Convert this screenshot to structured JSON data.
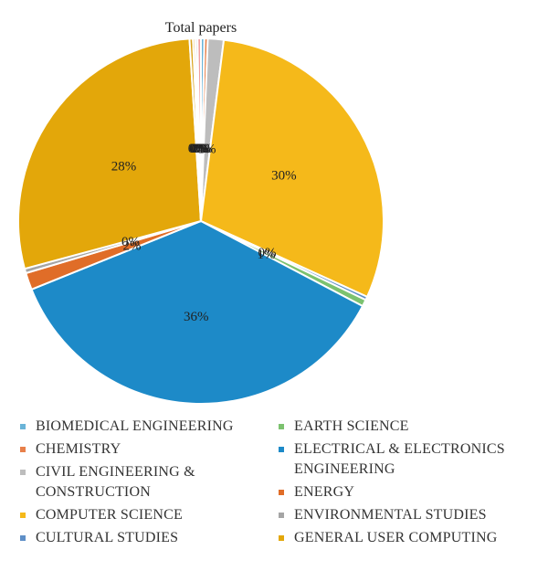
{
  "chart_data": {
    "type": "pie",
    "title": "Total papers",
    "slices": [
      {
        "label": "BIOMEDICAL ENGINEERING",
        "value": 0.3,
        "pct_label": "0%",
        "color": "#6ab4d8"
      },
      {
        "label": "CHEMISTRY",
        "value": 0.3,
        "pct_label": "0%",
        "color": "#e8804a"
      },
      {
        "label": "CIVIL ENGINEERING & CONSTRUCTION",
        "value": 1.4,
        "pct_label": "1%",
        "color": "#bdbdbd"
      },
      {
        "label": "COMPUTER SCIENCE",
        "value": 29.8,
        "pct_label": "30%",
        "color": "#f5b91a"
      },
      {
        "label": "CULTURAL STUDIES",
        "value": 0.3,
        "pct_label": "0%",
        "color": "#5e8fc7"
      },
      {
        "label": "EARTH SCIENCE",
        "value": 0.6,
        "pct_label": "1%",
        "color": "#7cc26f"
      },
      {
        "label": "ELECTRICAL & ELECTRONICS ENGINEERING",
        "value": 36.2,
        "pct_label": "36%",
        "color": "#1d8ac8"
      },
      {
        "label": "ENERGY",
        "value": 1.5,
        "pct_label": "2%",
        "color": "#e06d28"
      },
      {
        "label": "ENVIRONMENTAL STUDIES",
        "value": 0.4,
        "pct_label": "0%",
        "color": "#a5a5a5"
      },
      {
        "label": "GENERAL USER COMPUTING",
        "value": 28.2,
        "pct_label": "28%",
        "color": "#e3a70a"
      },
      {
        "label": "",
        "value": 0.3,
        "pct_label": "0%",
        "color": "#d9a31a"
      },
      {
        "label": "",
        "value": 0.2,
        "pct_label": "0%",
        "color": "#e0b040"
      },
      {
        "label": "",
        "value": 0.2,
        "pct_label": "0%",
        "color": "#c9c9c9"
      },
      {
        "label": "",
        "value": 0.3,
        "pct_label": "0%",
        "color": "#f0a0a0"
      }
    ],
    "legend_placement": "bottom",
    "legend_columns": {
      "left": [
        "BIOMEDICAL ENGINEERING",
        "CHEMISTRY",
        "CIVIL ENGINEERING & CONSTRUCTION",
        "COMPUTER SCIENCE",
        "CULTURAL STUDIES"
      ],
      "right": [
        "EARTH SCIENCE",
        "ELECTRICAL & ELECTRONICS ENGINEERING",
        "ENERGY",
        "ENVIRONMENTAL STUDIES",
        "GENERAL USER COMPUTING"
      ]
    }
  }
}
